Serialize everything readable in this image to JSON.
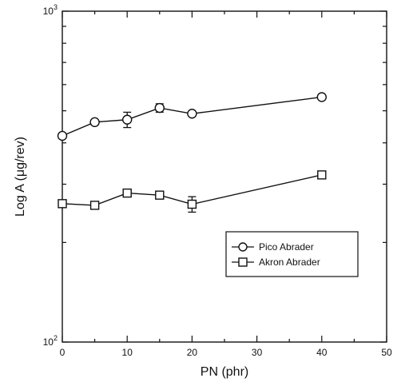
{
  "chart_data": {
    "type": "scatter",
    "title": "",
    "xlabel": "PN (phr)",
    "ylabel": "Log A (μg/rev)",
    "xlim": [
      0,
      50
    ],
    "ylim": [
      100,
      1000
    ],
    "y_scale": "log",
    "x_ticks": [
      0,
      10,
      20,
      30,
      40,
      50
    ],
    "x_tick_labels": [
      "0",
      "10",
      "20",
      "30",
      "40",
      "50"
    ],
    "y_tick_labels": [
      {
        "value": 100,
        "base": "10",
        "exp": "2"
      },
      {
        "value": 1000,
        "base": "10",
        "exp": "3"
      }
    ],
    "grid": false,
    "legend_position": "lower-right",
    "series": [
      {
        "name": "Pico Abrader",
        "marker": "circle",
        "x": [
          0,
          5,
          10,
          15,
          20,
          40
        ],
        "y": [
          420,
          462,
          470,
          510,
          490,
          550
        ],
        "error": [
          0,
          0,
          25,
          15,
          0,
          0
        ]
      },
      {
        "name": "Akron Abrader",
        "marker": "square",
        "x": [
          0,
          5,
          10,
          15,
          20,
          40
        ],
        "y": [
          262,
          259,
          282,
          278,
          261,
          320
        ],
        "error": [
          0,
          0,
          0,
          0,
          14,
          0
        ]
      }
    ]
  }
}
